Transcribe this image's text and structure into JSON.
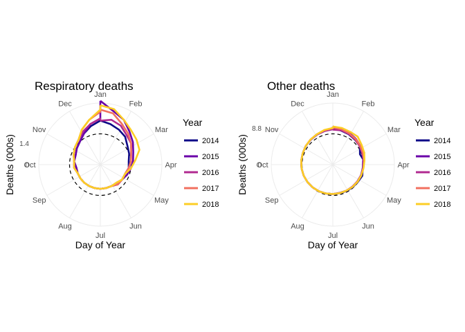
{
  "chart_data": [
    {
      "type": "line",
      "coord": "polar",
      "title": "Respiratory deaths",
      "xlabel": "Day of Year",
      "ylabel": "Deaths (000s)",
      "y_ticks": [
        "0",
        "1.4"
      ],
      "ylim": [
        0,
        2.8
      ],
      "reference_level": 1.4,
      "month_labels": [
        "Jan",
        "Feb",
        "Mar",
        "Apr",
        "May",
        "Jun",
        "Jul",
        "Aug",
        "Sep",
        "Oct",
        "Nov",
        "Dec"
      ],
      "legend_title": "Year",
      "legend_position": "right",
      "grid": true,
      "weeks": [
        1,
        3,
        5,
        7,
        9,
        11,
        13,
        15,
        17,
        19,
        21,
        23,
        25,
        27,
        29,
        31,
        33,
        35,
        37,
        39,
        41,
        43,
        45,
        47,
        49,
        51,
        53
      ],
      "series": [
        {
          "name": "2014",
          "color": "#0d0887",
          "values": [
            2.0,
            1.9,
            1.8,
            1.7,
            1.5,
            1.4,
            1.3,
            1.3,
            1.2,
            1.2,
            1.2,
            1.1,
            1.1,
            1.1,
            1.1,
            1.1,
            1.1,
            1.1,
            1.1,
            1.1,
            1.2,
            1.2,
            1.3,
            1.4,
            1.6,
            1.8,
            2.0
          ]
        },
        {
          "name": "2015",
          "color": "#6a00a8",
          "values": [
            2.9,
            2.5,
            2.3,
            2.0,
            1.8,
            1.6,
            1.5,
            1.4,
            1.3,
            1.2,
            1.2,
            1.1,
            1.1,
            1.1,
            1.1,
            1.1,
            1.1,
            1.1,
            1.1,
            1.1,
            1.2,
            1.2,
            1.3,
            1.4,
            1.6,
            1.9,
            2.1
          ]
        },
        {
          "name": "2016",
          "color": "#b12a90",
          "values": [
            2.0,
            2.1,
            2.0,
            1.8,
            1.7,
            1.5,
            1.4,
            1.3,
            1.2,
            1.2,
            1.1,
            1.1,
            1.1,
            1.1,
            1.1,
            1.1,
            1.1,
            1.1,
            1.1,
            1.2,
            1.2,
            1.3,
            1.4,
            1.5,
            1.7,
            1.9,
            2.1
          ]
        },
        {
          "name": "2017",
          "color": "#f1705f",
          "values": [
            2.5,
            2.4,
            2.1,
            1.9,
            1.7,
            1.5,
            1.4,
            1.3,
            1.2,
            1.2,
            1.2,
            1.1,
            1.1,
            1.1,
            1.1,
            1.1,
            1.1,
            1.1,
            1.1,
            1.2,
            1.2,
            1.3,
            1.4,
            1.5,
            1.8,
            2.1,
            2.4
          ]
        },
        {
          "name": "2018",
          "color": "#fcce25",
          "values": [
            2.7,
            2.6,
            2.3,
            2.1,
            2.0,
            1.9,
            1.6,
            1.4,
            1.2,
            1.2,
            1.1,
            1.1,
            1.1,
            1.1,
            1.1,
            1.1,
            1.1,
            1.1,
            1.1,
            1.2,
            1.2,
            1.3,
            1.4,
            1.5,
            1.8,
            2.1,
            2.5
          ]
        }
      ]
    },
    {
      "type": "line",
      "coord": "polar",
      "title": "Other deaths",
      "xlabel": "Day of Year",
      "ylabel": "Deaths (000s)",
      "y_ticks": [
        "0",
        "8.8"
      ],
      "ylim": [
        0,
        17.6
      ],
      "reference_level": 8.8,
      "month_labels": [
        "Jan",
        "Feb",
        "Mar",
        "Apr",
        "May",
        "Jun",
        "Jul",
        "Aug",
        "Sep",
        "Oct",
        "Nov",
        "Dec"
      ],
      "legend_title": "Year",
      "legend_position": "right",
      "grid": true,
      "weeks": [
        1,
        3,
        5,
        7,
        9,
        11,
        13,
        15,
        17,
        19,
        21,
        23,
        25,
        27,
        29,
        31,
        33,
        35,
        37,
        39,
        41,
        43,
        45,
        47,
        49,
        51,
        53
      ],
      "series": [
        {
          "name": "2014",
          "color": "#0d0887",
          "values": [
            10.3,
            10.0,
            9.8,
            9.5,
            9.4,
            8.3,
            9.0,
            8.6,
            9.0,
            8.7,
            8.6,
            8.5,
            8.4,
            8.4,
            8.5,
            8.6,
            8.7,
            8.8,
            8.9,
            9.0,
            9.1,
            9.2,
            9.4,
            9.5,
            9.7,
            9.9,
            10.1
          ]
        },
        {
          "name": "2015",
          "color": "#6a00a8",
          "values": [
            10.9,
            10.6,
            10.2,
            9.9,
            9.5,
            9.6,
            8.7,
            8.6,
            8.6,
            8.5,
            8.5,
            8.4,
            8.3,
            8.4,
            8.5,
            8.6,
            8.7,
            8.8,
            8.9,
            9.0,
            9.1,
            9.2,
            9.4,
            9.6,
            9.8,
            10.1,
            10.4
          ]
        },
        {
          "name": "2016",
          "color": "#b12a90",
          "values": [
            10.0,
            10.1,
            9.9,
            9.6,
            9.3,
            9.0,
            8.9,
            8.7,
            8.6,
            8.5,
            8.4,
            8.4,
            8.4,
            8.4,
            8.5,
            8.6,
            8.7,
            8.8,
            8.9,
            9.0,
            9.1,
            9.2,
            9.4,
            9.5,
            9.7,
            9.9,
            10.1
          ]
        },
        {
          "name": "2017",
          "color": "#f1705f",
          "values": [
            10.6,
            10.4,
            10.1,
            9.8,
            9.5,
            9.2,
            9.0,
            8.8,
            8.7,
            8.6,
            8.5,
            8.4,
            8.4,
            8.4,
            8.5,
            8.6,
            8.7,
            8.8,
            8.9,
            9.0,
            9.1,
            9.2,
            9.4,
            9.6,
            9.8,
            10.1,
            10.4
          ]
        },
        {
          "name": "2018",
          "color": "#fcce25",
          "values": [
            10.9,
            10.8,
            10.6,
            10.7,
            10.0,
            9.6,
            9.1,
            8.8,
            8.7,
            8.6,
            8.5,
            8.4,
            8.4,
            8.4,
            8.5,
            8.6,
            8.7,
            8.8,
            8.9,
            9.0,
            9.1,
            9.2,
            9.4,
            9.6,
            9.8,
            10.2,
            10.5
          ]
        }
      ]
    }
  ]
}
